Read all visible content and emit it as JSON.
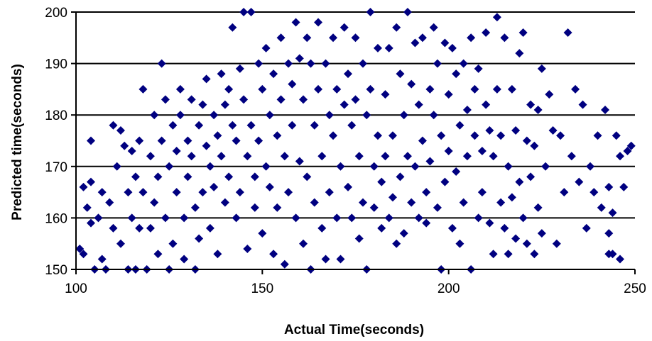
{
  "chart_data": {
    "type": "scatter",
    "xlabel": "Actual Time(seconds)",
    "ylabel": "Predicted time(seconds)",
    "xlim": [
      100,
      250
    ],
    "ylim": [
      150,
      200
    ],
    "x_ticks": [
      "100",
      "150",
      "200",
      "250"
    ],
    "y_ticks": [
      "150",
      "160",
      "170",
      "180",
      "190",
      "200"
    ],
    "grid": "horizontal",
    "legend": "none",
    "marker": "diamond",
    "marker_color": "#000080",
    "points": [
      [
        101,
        154
      ],
      [
        102,
        153
      ],
      [
        102,
        166
      ],
      [
        103,
        162
      ],
      [
        104,
        167
      ],
      [
        104,
        175
      ],
      [
        104,
        159
      ],
      [
        105,
        150
      ],
      [
        106,
        160
      ],
      [
        107,
        165
      ],
      [
        107,
        152
      ],
      [
        108,
        150
      ],
      [
        109,
        163
      ],
      [
        110,
        178
      ],
      [
        110,
        158
      ],
      [
        111,
        170
      ],
      [
        112,
        155
      ],
      [
        112,
        177
      ],
      [
        113,
        174
      ],
      [
        114,
        165
      ],
      [
        114,
        150
      ],
      [
        115,
        173
      ],
      [
        115,
        160
      ],
      [
        116,
        168
      ],
      [
        116,
        150
      ],
      [
        117,
        175
      ],
      [
        117,
        158
      ],
      [
        118,
        185
      ],
      [
        118,
        165
      ],
      [
        119,
        150
      ],
      [
        120,
        172
      ],
      [
        120,
        158
      ],
      [
        121,
        180
      ],
      [
        121,
        163
      ],
      [
        122,
        168
      ],
      [
        122,
        153
      ],
      [
        123,
        190
      ],
      [
        123,
        175
      ],
      [
        124,
        183
      ],
      [
        124,
        160
      ],
      [
        125,
        170
      ],
      [
        125,
        150
      ],
      [
        126,
        178
      ],
      [
        126,
        155
      ],
      [
        127,
        173
      ],
      [
        127,
        165
      ],
      [
        128,
        185
      ],
      [
        128,
        180
      ],
      [
        129,
        160
      ],
      [
        129,
        152
      ],
      [
        130,
        175
      ],
      [
        130,
        168
      ],
      [
        131,
        183
      ],
      [
        131,
        172
      ],
      [
        132,
        162
      ],
      [
        132,
        150
      ],
      [
        133,
        178
      ],
      [
        133,
        156
      ],
      [
        134,
        182
      ],
      [
        134,
        165
      ],
      [
        135,
        187
      ],
      [
        135,
        174
      ],
      [
        136,
        170
      ],
      [
        136,
        158
      ],
      [
        137,
        180
      ],
      [
        137,
        166
      ],
      [
        138,
        176
      ],
      [
        138,
        153
      ],
      [
        139,
        188
      ],
      [
        139,
        172
      ],
      [
        140,
        182
      ],
      [
        140,
        163
      ],
      [
        141,
        185
      ],
      [
        141,
        168
      ],
      [
        142,
        197
      ],
      [
        142,
        178
      ],
      [
        143,
        175
      ],
      [
        143,
        160
      ],
      [
        144,
        189
      ],
      [
        144,
        165
      ],
      [
        145,
        200
      ],
      [
        145,
        183
      ],
      [
        146,
        172
      ],
      [
        146,
        154
      ],
      [
        147,
        200
      ],
      [
        147,
        178
      ],
      [
        148,
        168
      ],
      [
        148,
        162
      ],
      [
        149,
        190
      ],
      [
        149,
        175
      ],
      [
        150,
        185
      ],
      [
        150,
        157
      ],
      [
        151,
        193
      ],
      [
        151,
        170
      ],
      [
        152,
        180
      ],
      [
        152,
        166
      ],
      [
        153,
        188
      ],
      [
        153,
        153
      ],
      [
        154,
        176
      ],
      [
        154,
        162
      ],
      [
        155,
        195
      ],
      [
        155,
        183
      ],
      [
        156,
        172
      ],
      [
        156,
        151
      ],
      [
        157,
        190
      ],
      [
        157,
        165
      ],
      [
        158,
        186
      ],
      [
        158,
        178
      ],
      [
        159,
        198
      ],
      [
        159,
        160
      ],
      [
        160,
        191
      ],
      [
        160,
        171
      ],
      [
        161,
        183
      ],
      [
        161,
        155
      ],
      [
        162,
        195
      ],
      [
        162,
        168
      ],
      [
        163,
        190
      ],
      [
        163,
        150
      ],
      [
        164,
        178
      ],
      [
        164,
        163
      ],
      [
        165,
        198
      ],
      [
        165,
        185
      ],
      [
        166,
        172
      ],
      [
        166,
        158
      ],
      [
        167,
        190
      ],
      [
        167,
        152
      ],
      [
        168,
        180
      ],
      [
        168,
        165
      ],
      [
        169,
        195
      ],
      [
        169,
        176
      ],
      [
        170,
        185
      ],
      [
        170,
        160
      ],
      [
        171,
        170
      ],
      [
        171,
        152
      ],
      [
        172,
        197
      ],
      [
        172,
        182
      ],
      [
        173,
        188
      ],
      [
        173,
        166
      ],
      [
        174,
        178
      ],
      [
        174,
        160
      ],
      [
        175,
        195
      ],
      [
        175,
        183
      ],
      [
        176,
        172
      ],
      [
        176,
        156
      ],
      [
        177,
        190
      ],
      [
        177,
        163
      ],
      [
        178,
        180
      ],
      [
        178,
        150
      ],
      [
        179,
        200
      ],
      [
        179,
        185
      ],
      [
        180,
        170
      ],
      [
        180,
        162
      ],
      [
        181,
        193
      ],
      [
        181,
        176
      ],
      [
        182,
        167
      ],
      [
        182,
        158
      ],
      [
        183,
        184
      ],
      [
        183,
        172
      ],
      [
        184,
        160
      ],
      [
        184,
        193
      ],
      [
        185,
        176
      ],
      [
        185,
        164
      ],
      [
        186,
        197
      ],
      [
        186,
        155
      ],
      [
        187,
        188
      ],
      [
        187,
        168
      ],
      [
        188,
        180
      ],
      [
        188,
        157
      ],
      [
        189,
        200
      ],
      [
        189,
        172
      ],
      [
        190,
        186
      ],
      [
        190,
        163
      ],
      [
        191,
        194
      ],
      [
        191,
        170
      ],
      [
        192,
        182
      ],
      [
        192,
        160
      ],
      [
        193,
        195
      ],
      [
        193,
        175
      ],
      [
        194,
        165
      ],
      [
        194,
        159
      ],
      [
        195,
        185
      ],
      [
        195,
        171
      ],
      [
        196,
        197
      ],
      [
        196,
        180
      ],
      [
        197,
        190
      ],
      [
        197,
        162
      ],
      [
        198,
        176
      ],
      [
        198,
        150
      ],
      [
        199,
        194
      ],
      [
        199,
        167
      ],
      [
        200,
        184
      ],
      [
        200,
        173
      ],
      [
        201,
        193
      ],
      [
        201,
        158
      ],
      [
        202,
        188
      ],
      [
        202,
        169
      ],
      [
        203,
        178
      ],
      [
        203,
        155
      ],
      [
        204,
        190
      ],
      [
        204,
        163
      ],
      [
        205,
        181
      ],
      [
        205,
        172
      ],
      [
        206,
        195
      ],
      [
        206,
        150
      ],
      [
        207,
        185
      ],
      [
        207,
        176
      ],
      [
        208,
        160
      ],
      [
        208,
        189
      ],
      [
        209,
        173
      ],
      [
        209,
        165
      ],
      [
        210,
        196
      ],
      [
        210,
        182
      ],
      [
        211,
        159
      ],
      [
        211,
        177
      ],
      [
        212,
        153
      ],
      [
        212,
        172
      ],
      [
        213,
        199
      ],
      [
        213,
        185
      ],
      [
        214,
        163
      ],
      [
        214,
        176
      ],
      [
        215,
        195
      ],
      [
        215,
        158
      ],
      [
        216,
        170
      ],
      [
        216,
        153
      ],
      [
        217,
        185
      ],
      [
        217,
        164
      ],
      [
        218,
        156
      ],
      [
        218,
        177
      ],
      [
        219,
        192
      ],
      [
        219,
        167
      ],
      [
        220,
        196
      ],
      [
        220,
        160
      ],
      [
        221,
        175
      ],
      [
        221,
        155
      ],
      [
        222,
        182
      ],
      [
        222,
        168
      ],
      [
        223,
        153
      ],
      [
        223,
        174
      ],
      [
        224,
        181
      ],
      [
        224,
        162
      ],
      [
        225,
        189
      ],
      [
        225,
        157
      ],
      [
        226,
        170
      ],
      [
        227,
        184
      ],
      [
        228,
        177
      ],
      [
        229,
        155
      ],
      [
        230,
        176
      ],
      [
        231,
        165
      ],
      [
        232,
        196
      ],
      [
        233,
        172
      ],
      [
        234,
        185
      ],
      [
        235,
        167
      ],
      [
        236,
        182
      ],
      [
        237,
        158
      ],
      [
        238,
        170
      ],
      [
        239,
        165
      ],
      [
        240,
        176
      ],
      [
        241,
        162
      ],
      [
        242,
        181
      ],
      [
        243,
        153
      ],
      [
        243,
        157
      ],
      [
        243,
        166
      ],
      [
        244,
        161
      ],
      [
        244,
        153
      ],
      [
        245,
        176
      ],
      [
        246,
        152
      ],
      [
        248,
        173
      ],
      [
        246,
        172
      ],
      [
        247,
        166
      ],
      [
        249,
        174
      ]
    ]
  }
}
